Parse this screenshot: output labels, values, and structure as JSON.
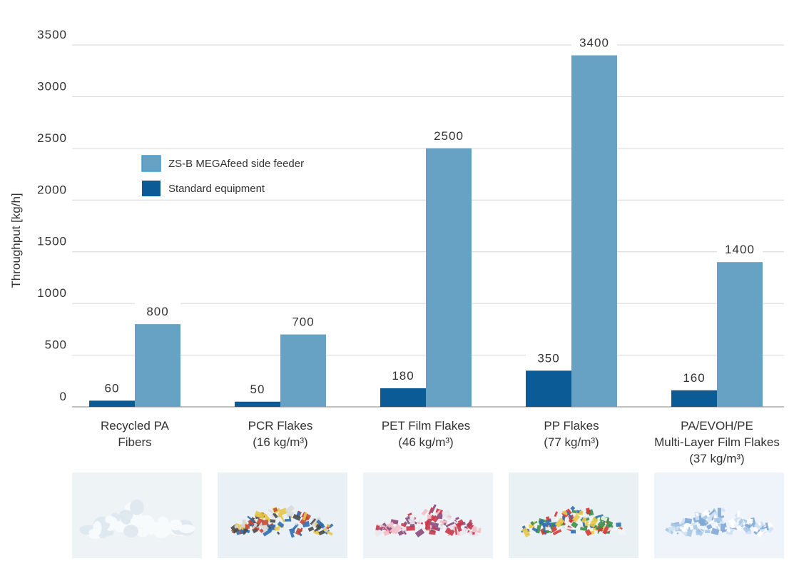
{
  "chart_data": {
    "type": "bar",
    "title": "",
    "xlabel": "",
    "ylabel": "Throughput [kg/h]",
    "ylim": [
      0,
      3500
    ],
    "yticks": [
      0,
      500,
      1000,
      1500,
      2000,
      2500,
      3000,
      3500
    ],
    "grid": true,
    "legend_position": "upper-left",
    "categories": [
      {
        "line1": "Recycled PA",
        "line2": "Fibers",
        "line3": "",
        "density": ""
      },
      {
        "line1": "PCR Flakes",
        "line2": "",
        "line3": "",
        "density": "16 kg/m³"
      },
      {
        "line1": "PET Film Flakes",
        "line2": "",
        "line3": "",
        "density": "46 kg/m³"
      },
      {
        "line1": "PP Flakes",
        "line2": "",
        "line3": "",
        "density": "77 kg/m³"
      },
      {
        "line1": "PA/EVOH/PE",
        "line2": "Multi-Layer Film Flakes",
        "line3": "",
        "density": "37 kg/m³"
      }
    ],
    "series": [
      {
        "name": "Standard equipment",
        "color": "#0b5b96",
        "values": [
          60,
          50,
          180,
          350,
          160
        ]
      },
      {
        "name": "ZS-B MEGAfeed side feeder",
        "color": "#67a2c4",
        "values": [
          800,
          700,
          2500,
          3400,
          1400
        ]
      }
    ],
    "legend_order": [
      1,
      0
    ],
    "data_labels": true
  },
  "photos": [
    {
      "name": "recycled-pa-fibers-photo",
      "palette": [
        "#eef3f6",
        "#f8fbfc",
        "#dde8ee"
      ],
      "style": "fluffy"
    },
    {
      "name": "pcr-flakes-photo",
      "palette": [
        "#eaf1f6",
        "#c44a3a",
        "#2f6fb1",
        "#e7c84a",
        "#4a4a4a",
        "#d9d9d9"
      ],
      "style": "mixed"
    },
    {
      "name": "pet-film-flakes-photo",
      "palette": [
        "#eef3f7",
        "#c9394a",
        "#e8e8ee",
        "#8a4a7a",
        "#f2c0c8"
      ],
      "style": "film"
    },
    {
      "name": "pp-flakes-photo",
      "palette": [
        "#eaf1f5",
        "#d33a3a",
        "#3a8f4a",
        "#2f6fb1",
        "#e9c84a",
        "#f4f4f4"
      ],
      "style": "mixed"
    },
    {
      "name": "pa-evoh-pe-film-flakes-photo",
      "palette": [
        "#eef4f9",
        "#a9c9e6",
        "#cfe1f2",
        "#7fa9d6",
        "#ffffff"
      ],
      "style": "film"
    }
  ]
}
